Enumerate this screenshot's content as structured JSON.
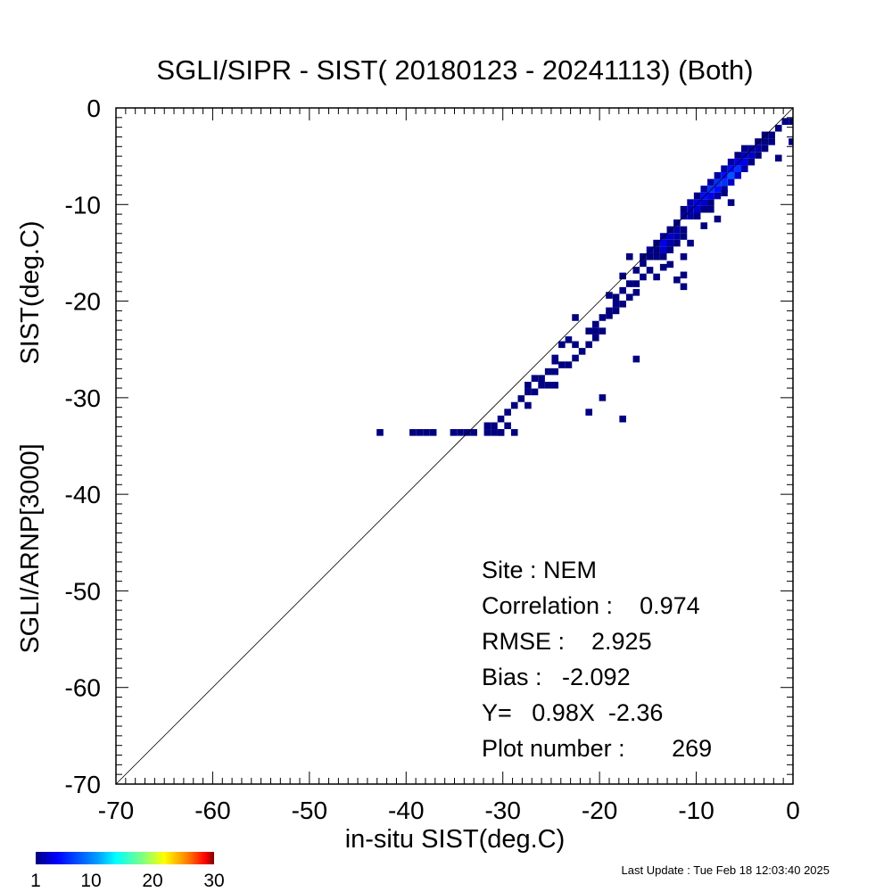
{
  "chart_data": {
    "type": "heatmap",
    "title": "SGLI/SIPR - SIST( 20180123 - 20241113) (Both)",
    "xlabel": "in-situ SIST(deg.C)",
    "ylabel_top": "SIST(deg.C)",
    "ylabel_bottom": "SGLI/ARNP[3000]",
    "xlim": [
      -70,
      0
    ],
    "ylim": [
      -70,
      0
    ],
    "x_ticks": [
      -70,
      -60,
      -50,
      -40,
      -30,
      -20,
      -10,
      0
    ],
    "y_ticks": [
      -70,
      -60,
      -50,
      -40,
      -30,
      -20,
      -10,
      0
    ],
    "x_tick_labels": [
      "-70",
      "-60",
      "-50",
      "-40",
      "-30",
      "-20",
      "-10",
      "0"
    ],
    "y_tick_labels": [
      "-70",
      "-60",
      "-50",
      "-40",
      "-30",
      "-20",
      "-10",
      "0"
    ],
    "one_to_one_line": true,
    "bin_size": 0.7,
    "colorscale": {
      "min": 1,
      "max": 30,
      "tick_values": [
        1,
        10,
        20,
        30
      ],
      "tick_labels": [
        "1",
        "10",
        "20",
        "30"
      ],
      "colors": [
        "#000080",
        "#0000ff",
        "#0080ff",
        "#00ffff",
        "#80ff80",
        "#ffff00",
        "#ff8000",
        "#ff0000",
        "#800000"
      ]
    },
    "cells": [
      [
        -42.7,
        -33.6,
        1
      ],
      [
        -39.3,
        -33.6,
        1
      ],
      [
        -38.6,
        -33.6,
        1
      ],
      [
        -37.9,
        -33.6,
        1
      ],
      [
        -37.2,
        -33.6,
        1
      ],
      [
        -35.1,
        -33.6,
        1
      ],
      [
        -34.4,
        -33.6,
        1
      ],
      [
        -33.7,
        -33.6,
        1
      ],
      [
        -33.0,
        -33.6,
        1
      ],
      [
        -31.6,
        -33.6,
        1
      ],
      [
        -30.9,
        -33.6,
        1
      ],
      [
        -30.2,
        -33.6,
        1
      ],
      [
        -28.8,
        -33.6,
        1
      ],
      [
        -30.9,
        -32.9,
        1
      ],
      [
        -29.5,
        -32.9,
        1
      ],
      [
        -30.2,
        -32.2,
        1
      ],
      [
        -29.5,
        -31.5,
        1
      ],
      [
        -28.8,
        -30.8,
        1
      ],
      [
        -28.1,
        -30.1,
        1
      ],
      [
        -27.4,
        -29.4,
        1
      ],
      [
        -26.7,
        -29.4,
        1
      ],
      [
        -27.4,
        -28.7,
        1
      ],
      [
        -26.0,
        -28.7,
        1
      ],
      [
        -25.3,
        -28.7,
        1
      ],
      [
        -24.6,
        -28.7,
        1
      ],
      [
        -26.7,
        -28.0,
        1
      ],
      [
        -26.0,
        -28.0,
        1
      ],
      [
        -25.3,
        -27.3,
        1
      ],
      [
        -24.6,
        -27.3,
        1
      ],
      [
        -23.9,
        -26.6,
        1
      ],
      [
        -23.2,
        -26.6,
        1
      ],
      [
        -24.6,
        -25.9,
        1
      ],
      [
        -22.5,
        -25.9,
        1
      ],
      [
        -21.8,
        -25.2,
        1
      ],
      [
        -22.5,
        -24.5,
        1
      ],
      [
        -21.1,
        -24.5,
        1
      ],
      [
        -20.4,
        -23.8,
        1
      ],
      [
        -21.1,
        -23.1,
        1
      ],
      [
        -20.4,
        -23.1,
        1
      ],
      [
        -19.7,
        -23.1,
        1
      ],
      [
        -22.5,
        -21.7,
        1
      ],
      [
        -20.4,
        -22.4,
        1
      ],
      [
        -19.7,
        -21.7,
        1
      ],
      [
        -19.0,
        -21.0,
        1
      ],
      [
        -18.3,
        -20.3,
        1
      ],
      [
        -17.6,
        -20.3,
        1
      ],
      [
        -16.9,
        -19.6,
        1
      ],
      [
        -18.3,
        -19.6,
        1
      ],
      [
        -17.6,
        -18.9,
        1
      ],
      [
        -16.9,
        -18.2,
        1
      ],
      [
        -16.2,
        -18.2,
        1
      ],
      [
        -15.5,
        -17.5,
        1
      ],
      [
        -16.2,
        -16.8,
        1
      ],
      [
        -14.8,
        -16.8,
        1
      ],
      [
        -16.9,
        -15.4,
        1
      ],
      [
        -15.5,
        -15.4,
        1
      ],
      [
        -14.8,
        -15.4,
        1
      ],
      [
        -14.1,
        -15.4,
        1
      ],
      [
        -13.4,
        -15.4,
        1
      ],
      [
        -14.8,
        -14.7,
        2
      ],
      [
        -14.1,
        -14.7,
        1
      ],
      [
        -13.4,
        -14.7,
        3
      ],
      [
        -12.7,
        -14.7,
        1
      ],
      [
        -14.1,
        -14.0,
        1
      ],
      [
        -13.4,
        -14.0,
        4
      ],
      [
        -12.7,
        -14.0,
        2
      ],
      [
        -12.0,
        -14.0,
        1
      ],
      [
        -13.4,
        -13.3,
        2
      ],
      [
        -12.7,
        -13.3,
        3
      ],
      [
        -12.0,
        -13.3,
        2
      ],
      [
        -11.3,
        -13.3,
        1
      ],
      [
        -12.7,
        -12.6,
        1
      ],
      [
        -12.0,
        -12.6,
        2
      ],
      [
        -11.3,
        -12.6,
        1
      ],
      [
        -12.0,
        -11.9,
        1
      ],
      [
        -11.3,
        -11.2,
        2
      ],
      [
        -10.6,
        -11.2,
        2
      ],
      [
        -9.9,
        -11.2,
        1
      ],
      [
        -11.3,
        -10.5,
        1
      ],
      [
        -10.6,
        -10.5,
        3
      ],
      [
        -9.9,
        -10.5,
        3
      ],
      [
        -9.2,
        -10.5,
        1
      ],
      [
        -10.6,
        -9.8,
        2
      ],
      [
        -9.9,
        -9.8,
        4
      ],
      [
        -9.2,
        -9.8,
        3
      ],
      [
        -8.5,
        -9.8,
        1
      ],
      [
        -9.9,
        -9.1,
        1
      ],
      [
        -9.2,
        -9.1,
        5
      ],
      [
        -8.5,
        -9.1,
        4
      ],
      [
        -7.8,
        -9.1,
        2
      ],
      [
        -9.2,
        -8.4,
        2
      ],
      [
        -8.5,
        -8.4,
        6
      ],
      [
        -7.8,
        -8.4,
        5
      ],
      [
        -7.1,
        -8.4,
        2
      ],
      [
        -8.5,
        -7.7,
        2
      ],
      [
        -7.8,
        -7.7,
        6
      ],
      [
        -7.1,
        -7.7,
        6
      ],
      [
        -6.4,
        -7.7,
        3
      ],
      [
        -7.8,
        -7.0,
        2
      ],
      [
        -7.1,
        -7.0,
        5
      ],
      [
        -6.4,
        -7.0,
        7
      ],
      [
        -5.7,
        -7.0,
        3
      ],
      [
        -7.1,
        -6.3,
        2
      ],
      [
        -6.4,
        -6.3,
        5
      ],
      [
        -5.7,
        -6.3,
        6
      ],
      [
        -5.0,
        -6.3,
        2
      ],
      [
        -6.4,
        -5.6,
        2
      ],
      [
        -5.7,
        -5.6,
        4
      ],
      [
        -5.0,
        -5.6,
        4
      ],
      [
        -4.3,
        -5.6,
        1
      ],
      [
        -5.7,
        -4.9,
        1
      ],
      [
        -5.0,
        -4.9,
        3
      ],
      [
        -4.3,
        -4.9,
        3
      ],
      [
        -3.6,
        -4.9,
        1
      ],
      [
        -5.0,
        -4.2,
        1
      ],
      [
        -4.3,
        -4.2,
        2
      ],
      [
        -3.6,
        -4.2,
        2
      ],
      [
        -2.9,
        -4.2,
        1
      ],
      [
        -3.6,
        -3.5,
        1
      ],
      [
        -2.9,
        -3.5,
        1
      ],
      [
        -2.2,
        -3.5,
        1
      ],
      [
        -2.9,
        -2.8,
        1
      ],
      [
        -2.2,
        -2.8,
        1
      ],
      [
        -1.5,
        -2.1,
        1
      ],
      [
        -0.8,
        -1.4,
        1
      ],
      [
        -0.1,
        -1.4,
        1
      ],
      [
        -0.1,
        -3.5,
        1
      ],
      [
        -1.5,
        -5.2,
        1
      ],
      [
        -7.8,
        -11.5,
        1
      ],
      [
        -9.2,
        -12.2,
        1
      ],
      [
        -8.5,
        -10.5,
        1
      ],
      [
        -6.4,
        -9.8,
        1
      ],
      [
        -7.1,
        -8.8,
        1
      ],
      [
        -10.6,
        -14.0,
        1
      ],
      [
        -11.3,
        -15.4,
        1
      ],
      [
        -15.5,
        -16.1,
        1
      ],
      [
        -17.6,
        -17.4,
        1
      ],
      [
        -12.7,
        -16.2,
        1
      ],
      [
        -11.3,
        -17.3,
        1
      ],
      [
        -12.0,
        -17.8,
        1
      ],
      [
        -11.3,
        -18.5,
        1
      ],
      [
        -13.4,
        -16.5,
        1
      ],
      [
        -14.1,
        -17.5,
        1
      ],
      [
        -16.2,
        -19.1,
        1
      ],
      [
        -19.0,
        -21.5,
        1
      ],
      [
        -19.0,
        -19.4,
        1
      ],
      [
        -18.3,
        -21.0,
        1
      ],
      [
        -23.9,
        -24.5,
        1
      ],
      [
        -23.2,
        -24.0,
        1
      ],
      [
        -24.6,
        -26.2,
        1
      ],
      [
        -16.2,
        -26.0,
        1
      ],
      [
        -19.7,
        -30.0,
        1
      ],
      [
        -21.1,
        -31.5,
        1
      ],
      [
        -17.6,
        -32.2,
        1
      ],
      [
        -27.4,
        -30.8,
        1
      ],
      [
        -30.2,
        -33.6,
        1
      ],
      [
        -31.6,
        -32.9,
        1
      ]
    ]
  },
  "stats": {
    "site": "Site : NEM",
    "correlation": "Correlation :    0.974",
    "rmse": "RMSE :    2.925",
    "bias": "Bias :   -2.092",
    "regression": "Y=   0.98X  -2.36",
    "plot_number": "Plot number :       269"
  },
  "footer": {
    "last_update": "Last Update : Tue Feb 18 12:03:40 2025"
  }
}
